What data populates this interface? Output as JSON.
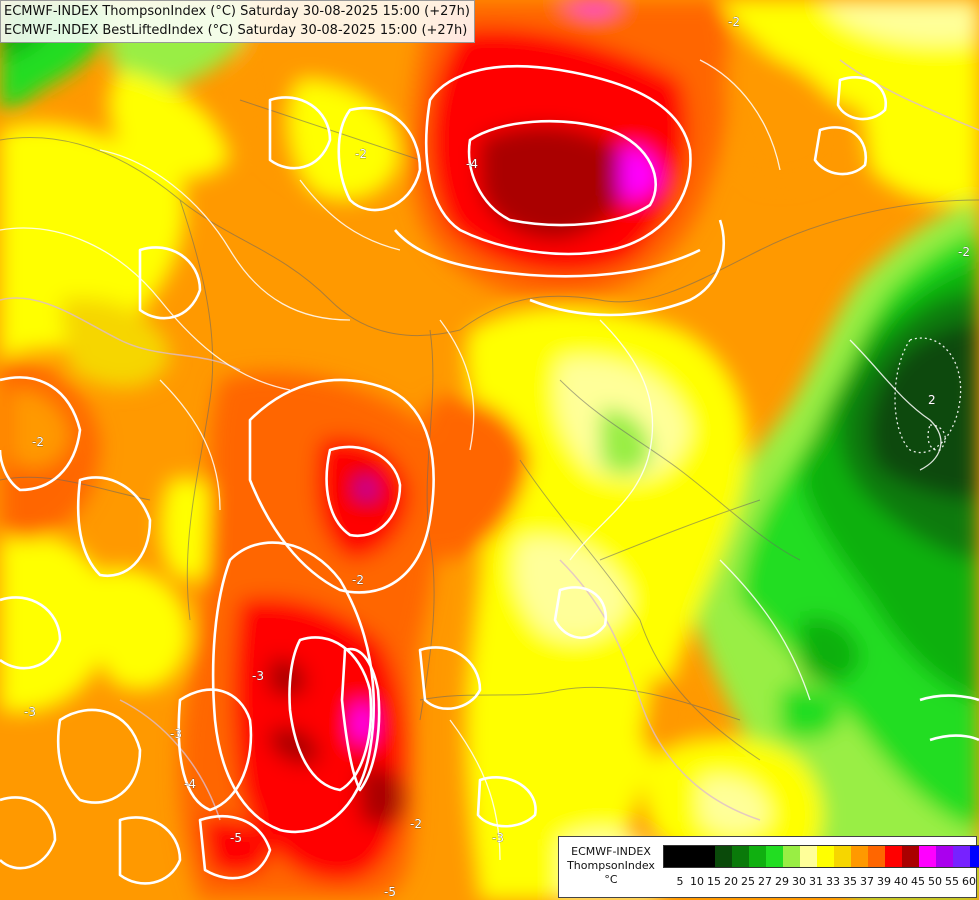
{
  "header": {
    "line1": "ECMWF-INDEX ThompsonIndex (°C) Saturday 30-08-2025 15:00 (+27h)",
    "line2": "ECMWF-INDEX BestLiftedIndex (°C) Saturday 30-08-2025 15:00 (+27h)"
  },
  "legend": {
    "title": "ECMWF-INDEX",
    "variable": "ThompsonIndex",
    "unit": "°C",
    "ticks": [
      "5",
      "10",
      "15",
      "20",
      "25",
      "27",
      "29",
      "30",
      "31",
      "33",
      "35",
      "37",
      "39",
      "40",
      "45",
      "50",
      "55",
      "60"
    ],
    "colors": [
      "#000000",
      "#000000",
      "#000000",
      "#0a4a0a",
      "#0a7a0a",
      "#10b010",
      "#22dd22",
      "#99ee44",
      "#ffff99",
      "#ffff00",
      "#f6d600",
      "#ff9900",
      "#ff6600",
      "#ff0000",
      "#aa0000",
      "#ff00ff",
      "#aa00ee",
      "#7722ff",
      "#0000ff"
    ]
  },
  "map": {
    "contour_labels": [
      "-2",
      "-4",
      "-2",
      "-2",
      "-2",
      "-3",
      "-3",
      "-4",
      "-5",
      "-5",
      "-3",
      "-3",
      "-2",
      "-2",
      "2"
    ]
  }
}
